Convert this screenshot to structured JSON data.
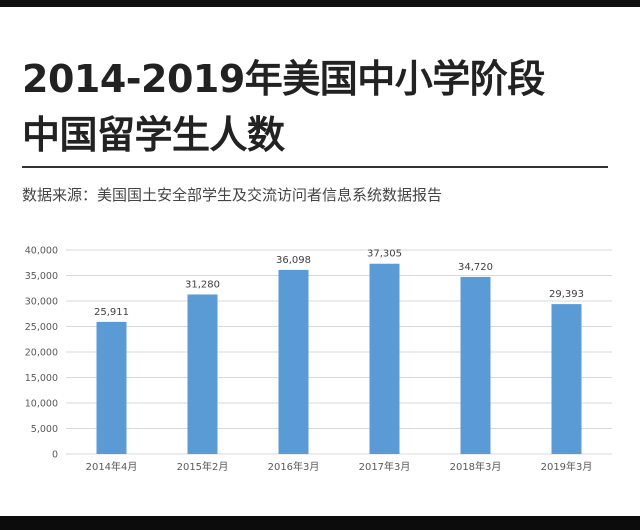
{
  "header": {
    "title_line1": "2014-2019年美国中小学阶段",
    "title_line2": "中国留学生人数",
    "source": "数据来源：美国国土安全部学生及交流访问者信息系统数据报告"
  },
  "colors": {
    "bar": "#5b9bd5",
    "grid": "#d9d9d9",
    "axis_text": "#595959",
    "title": "#222222"
  },
  "chart_data": {
    "type": "bar",
    "title": "",
    "xlabel": "",
    "ylabel": "",
    "categories": [
      "2014年4月",
      "2015年2月",
      "2016年3月",
      "2017年3月",
      "2018年3月",
      "2019年3月"
    ],
    "values": [
      25911,
      31280,
      36098,
      37305,
      34720,
      29393
    ],
    "value_labels": [
      "25,911",
      "31,280",
      "36,098",
      "37,305",
      "34,720",
      "29,393"
    ],
    "ylim": [
      0,
      40000
    ],
    "yticks": [
      0,
      5000,
      10000,
      15000,
      20000,
      25000,
      30000,
      35000,
      40000
    ],
    "ytick_labels": [
      "0",
      "5,000",
      "10,000",
      "15,000",
      "20,000",
      "25,000",
      "30,000",
      "35,000",
      "40,000"
    ],
    "grid": true,
    "legend": "none"
  }
}
